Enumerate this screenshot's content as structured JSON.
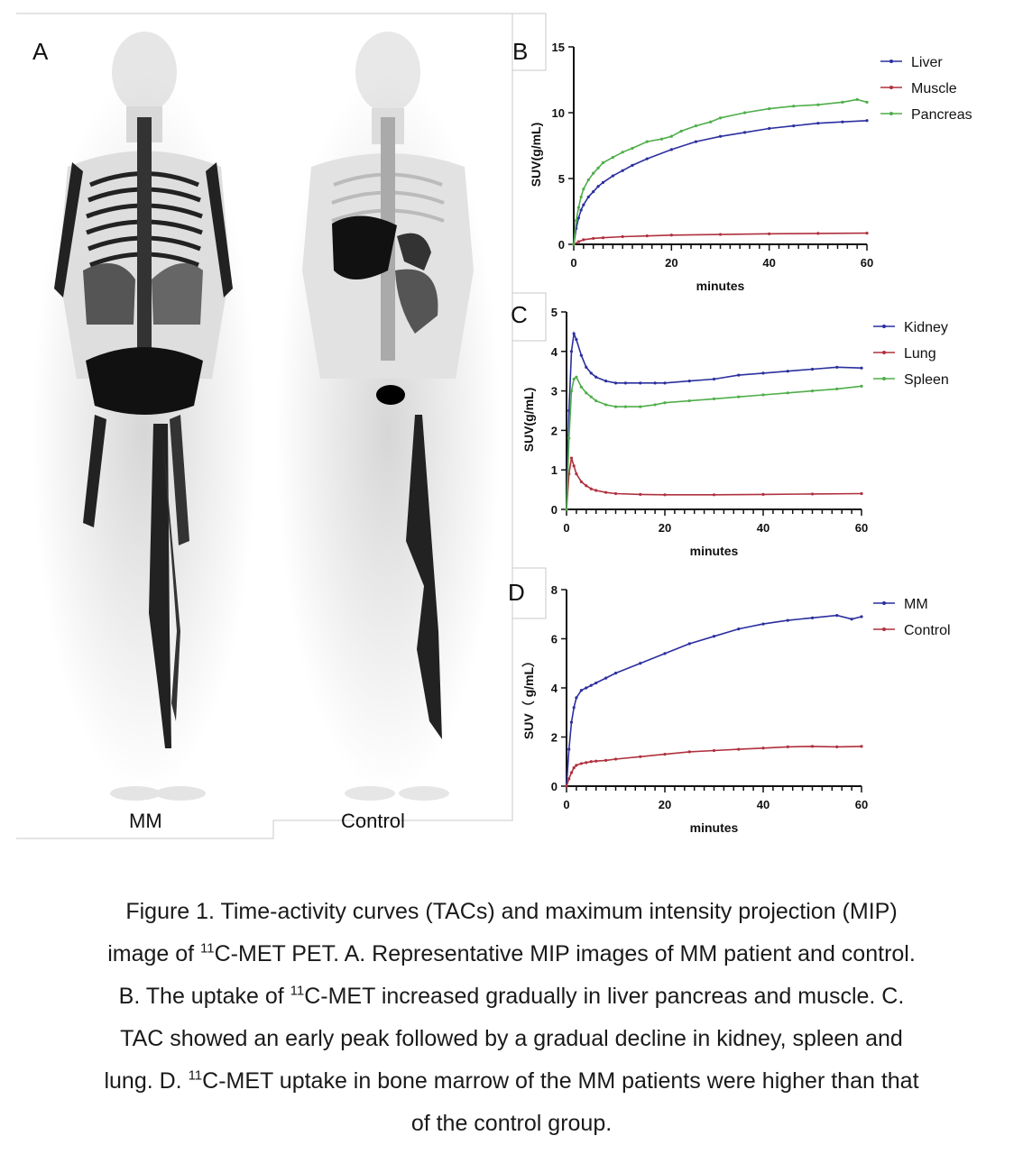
{
  "panel_a": {
    "letter": "A",
    "left_label": "MM",
    "right_label": "Control"
  },
  "charts": [
    {
      "letter": "B",
      "ylabel": "SUV(g/mL)",
      "xlabel": "minutes"
    },
    {
      "letter": "C",
      "ylabel": "SUV(g/mL)",
      "xlabel": "minutes"
    },
    {
      "letter": "D",
      "ylabel": "SUV（ g/mL）",
      "xlabel": "minutes"
    }
  ],
  "chart_data": [
    {
      "type": "line",
      "xlim": [
        0,
        60
      ],
      "ylim": [
        0,
        15
      ],
      "xticks": [
        0,
        20,
        40,
        60
      ],
      "yticks": [
        0,
        5,
        10,
        15
      ],
      "xlabel": "minutes",
      "ylabel": "SUV(g/mL)",
      "legend_position": "top-right",
      "series": [
        {
          "name": "Liver",
          "color": "#2b2f9e",
          "x": [
            0,
            0.5,
            1,
            1.5,
            2,
            3,
            4,
            5,
            6,
            8,
            10,
            12,
            15,
            20,
            25,
            30,
            35,
            40,
            45,
            50,
            55,
            60
          ],
          "y": [
            0,
            1.2,
            2.0,
            2.6,
            3.0,
            3.6,
            4.0,
            4.4,
            4.7,
            5.2,
            5.6,
            6.0,
            6.5,
            7.2,
            7.8,
            8.2,
            8.5,
            8.8,
            9.0,
            9.2,
            9.3,
            9.4
          ]
        },
        {
          "name": "Muscle",
          "color": "#b0303e",
          "x": [
            0,
            1,
            2,
            4,
            6,
            10,
            15,
            20,
            30,
            40,
            50,
            60
          ],
          "y": [
            0,
            0.2,
            0.35,
            0.45,
            0.5,
            0.58,
            0.64,
            0.7,
            0.75,
            0.8,
            0.83,
            0.85
          ]
        },
        {
          "name": "Pancreas",
          "color": "#4fae4a",
          "x": [
            0,
            0.5,
            1,
            1.5,
            2,
            3,
            4,
            5,
            6,
            8,
            10,
            12,
            15,
            18,
            20,
            22,
            25,
            28,
            30,
            35,
            40,
            45,
            50,
            55,
            58,
            60
          ],
          "y": [
            0,
            1.8,
            2.8,
            3.6,
            4.2,
            4.9,
            5.4,
            5.8,
            6.2,
            6.6,
            7.0,
            7.3,
            7.8,
            8.0,
            8.2,
            8.6,
            9.0,
            9.3,
            9.6,
            10.0,
            10.3,
            10.5,
            10.6,
            10.8,
            11.0,
            10.8
          ]
        }
      ]
    },
    {
      "type": "line",
      "xlim": [
        0,
        60
      ],
      "ylim": [
        0,
        5
      ],
      "xticks": [
        0,
        20,
        40,
        60
      ],
      "yticks": [
        0,
        1,
        2,
        3,
        4,
        5
      ],
      "xlabel": "minutes",
      "ylabel": "SUV(g/mL)",
      "legend_position": "top-right",
      "series": [
        {
          "name": "Kidney",
          "color": "#2b2f9e",
          "x": [
            0,
            0.5,
            1,
            1.5,
            2,
            3,
            4,
            5,
            6,
            8,
            10,
            12,
            15,
            18,
            20,
            25,
            30,
            35,
            40,
            45,
            50,
            55,
            60
          ],
          "y": [
            0,
            2.5,
            4.0,
            4.45,
            4.3,
            3.9,
            3.6,
            3.45,
            3.35,
            3.25,
            3.2,
            3.2,
            3.2,
            3.2,
            3.2,
            3.25,
            3.3,
            3.4,
            3.45,
            3.5,
            3.55,
            3.6,
            3.58
          ]
        },
        {
          "name": "Lung",
          "color": "#b0303e",
          "x": [
            0,
            0.5,
            1,
            1.5,
            2,
            3,
            4,
            5,
            6,
            8,
            10,
            15,
            20,
            30,
            40,
            50,
            60
          ],
          "y": [
            0,
            0.9,
            1.3,
            1.1,
            0.9,
            0.7,
            0.6,
            0.52,
            0.48,
            0.43,
            0.4,
            0.38,
            0.37,
            0.37,
            0.38,
            0.39,
            0.4
          ]
        },
        {
          "name": "Spleen",
          "color": "#4fae4a",
          "x": [
            0,
            0.5,
            1,
            1.5,
            2,
            3,
            4,
            5,
            6,
            8,
            10,
            12,
            15,
            18,
            20,
            25,
            30,
            35,
            40,
            45,
            50,
            55,
            60
          ],
          "y": [
            0,
            1.8,
            3.0,
            3.3,
            3.35,
            3.1,
            2.95,
            2.85,
            2.75,
            2.65,
            2.6,
            2.6,
            2.6,
            2.65,
            2.7,
            2.75,
            2.8,
            2.85,
            2.9,
            2.95,
            3.0,
            3.05,
            3.12
          ]
        }
      ]
    },
    {
      "type": "line",
      "xlim": [
        0,
        60
      ],
      "ylim": [
        0,
        8
      ],
      "xticks": [
        0,
        20,
        40,
        60
      ],
      "yticks": [
        0,
        2,
        4,
        6,
        8
      ],
      "xlabel": "minutes",
      "ylabel": "SUV（ g/mL）",
      "legend_position": "top-right",
      "series": [
        {
          "name": "MM",
          "color": "#2b2f9e",
          "x": [
            0,
            0.5,
            1,
            1.5,
            2,
            3,
            4,
            5,
            6,
            8,
            10,
            15,
            20,
            25,
            30,
            35,
            40,
            45,
            50,
            55,
            58,
            60
          ],
          "y": [
            0,
            1.5,
            2.6,
            3.2,
            3.6,
            3.9,
            4.0,
            4.1,
            4.2,
            4.4,
            4.6,
            5.0,
            5.4,
            5.8,
            6.1,
            6.4,
            6.6,
            6.75,
            6.85,
            6.95,
            6.8,
            6.9
          ]
        },
        {
          "name": "Control",
          "color": "#b0303e",
          "x": [
            0,
            0.5,
            1,
            1.5,
            2,
            3,
            4,
            5,
            6,
            8,
            10,
            15,
            20,
            25,
            30,
            35,
            40,
            45,
            50,
            55,
            60
          ],
          "y": [
            0,
            0.3,
            0.55,
            0.75,
            0.85,
            0.92,
            0.96,
            1.0,
            1.02,
            1.05,
            1.1,
            1.2,
            1.3,
            1.4,
            1.45,
            1.5,
            1.55,
            1.6,
            1.62,
            1.6,
            1.62
          ]
        }
      ]
    }
  ],
  "caption": {
    "line1": "Figure 1. Time-activity curves (TACs) and maximum intensity projection (MIP)",
    "line2_pre": "image of ",
    "sup": "11",
    "line2_post": "C-MET PET. A. Representative MIP images of MM patient and control.",
    "line3_pre": "B. The uptake of ",
    "line3_post": "C-MET increased gradually in liver pancreas and muscle. C.",
    "line4": "TAC showed an early peak followed by a gradual decline in kidney, spleen and",
    "line5_pre": "lung. D. ",
    "line5_post": "C-MET uptake in bone marrow of the MM patients were higher than that",
    "line6": "of the control group."
  }
}
